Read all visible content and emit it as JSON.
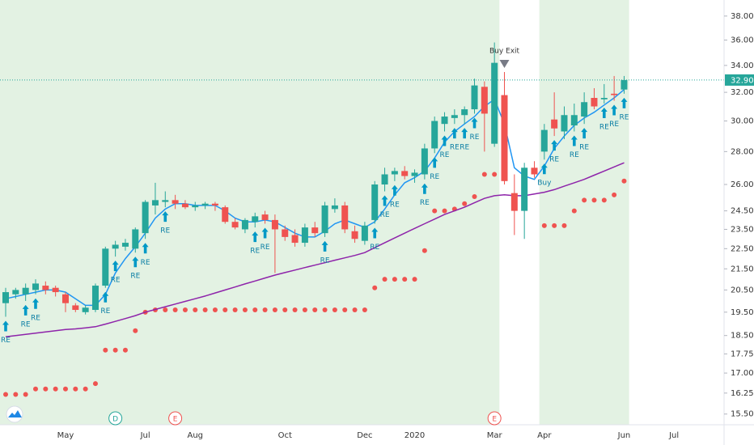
{
  "chart_data": {
    "type": "candlestick",
    "log_scale": true,
    "grid": false,
    "categories": [
      null,
      null,
      null,
      null,
      null,
      null,
      "May",
      null,
      null,
      null,
      null,
      null,
      null,
      null,
      "Jul",
      null,
      null,
      null,
      null,
      "Aug",
      null,
      null,
      null,
      null,
      null,
      null,
      null,
      null,
      "Oct",
      null,
      null,
      null,
      null,
      null,
      null,
      null,
      "Dec",
      null,
      null,
      null,
      null,
      "2020",
      null,
      null,
      null,
      null,
      null,
      null,
      null,
      "Mar",
      null,
      null,
      null,
      null,
      "Apr",
      null,
      null,
      null,
      null,
      null,
      null,
      null,
      "Jun",
      null,
      null,
      null,
      null,
      "Jul",
      null,
      null,
      null,
      null
    ],
    "ohlc": {
      "up_color": "#26a69a",
      "down_color": "#ef5350",
      "open": [
        19.9,
        20.3,
        20.3,
        20.5,
        20.7,
        20.6,
        20.3,
        19.8,
        19.5,
        19.6,
        20.7,
        22.5,
        22.6,
        22.5,
        23.3,
        24.8,
        25.0,
        25.1,
        24.9,
        24.7,
        24.8,
        24.9,
        24.7,
        23.9,
        23.5,
        23.9,
        24.3,
        24.0,
        23.5,
        23.2,
        22.8,
        23.6,
        23.3,
        24.6,
        24.8,
        23.4,
        22.9,
        24.0,
        26.0,
        26.6,
        26.8,
        26.5,
        26.6,
        28.2,
        29.8,
        30.2,
        30.4,
        30.8,
        32.4,
        28.5,
        31.8,
        25.5,
        24.5,
        27.0,
        28.0,
        30.1,
        29.3,
        29.7,
        30.3,
        31.6,
        31.5,
        31.9,
        32.2,
        null,
        null,
        null,
        null,
        null,
        null,
        null,
        null,
        null
      ],
      "high": [
        20.6,
        20.6,
        20.8,
        21.0,
        20.9,
        20.7,
        20.4,
        19.9,
        19.8,
        20.8,
        22.6,
        22.9,
        23.0,
        23.6,
        25.1,
        26.1,
        25.6,
        25.4,
        25.1,
        25.0,
        25.0,
        25.0,
        24.8,
        24.1,
        24.1,
        24.4,
        24.5,
        24.3,
        23.7,
        23.5,
        23.8,
        23.9,
        25.0,
        25.2,
        25.0,
        23.7,
        23.9,
        26.2,
        27.0,
        27.0,
        27.1,
        26.9,
        28.5,
        30.3,
        30.6,
        30.8,
        31.0,
        33.0,
        32.8,
        35.8,
        33.5,
        26.6,
        27.3,
        27.4,
        29.8,
        32.0,
        31.0,
        31.2,
        32.0,
        32.3,
        32.6,
        33.2,
        33.2,
        null,
        null,
        null,
        null,
        null,
        null,
        null,
        null,
        null
      ],
      "low": [
        19.3,
        20.1,
        20.0,
        20.3,
        20.3,
        20.2,
        19.5,
        19.5,
        19.4,
        19.5,
        20.6,
        22.1,
        22.4,
        22.3,
        23.0,
        24.3,
        24.7,
        24.6,
        24.6,
        24.5,
        24.6,
        24.5,
        23.8,
        23.5,
        23.3,
        23.6,
        23.8,
        21.3,
        22.9,
        22.6,
        22.6,
        23.1,
        23.1,
        24.4,
        23.3,
        22.8,
        22.7,
        23.8,
        25.6,
        26.2,
        26.3,
        26.1,
        26.3,
        27.9,
        29.3,
        29.8,
        29.8,
        30.5,
        28.0,
        28.3,
        26.0,
        23.2,
        23.0,
        26.4,
        27.5,
        29.0,
        28.8,
        29.3,
        29.8,
        30.8,
        31.2,
        31.4,
        31.9,
        null,
        null,
        null,
        null,
        null,
        null,
        null,
        null,
        null
      ],
      "close": [
        20.4,
        20.5,
        20.6,
        20.8,
        20.5,
        20.4,
        19.9,
        19.6,
        19.7,
        20.7,
        22.5,
        22.7,
        22.8,
        23.5,
        25.0,
        25.1,
        25.1,
        24.9,
        24.7,
        24.8,
        24.9,
        24.8,
        23.9,
        23.6,
        24.0,
        24.2,
        24.0,
        23.5,
        23.1,
        22.8,
        23.6,
        23.3,
        24.8,
        24.8,
        23.5,
        23.0,
        23.7,
        26.0,
        26.6,
        26.8,
        26.5,
        26.7,
        28.2,
        30.0,
        30.3,
        30.4,
        30.8,
        32.5,
        30.5,
        34.2,
        26.2,
        24.5,
        27.0,
        26.6,
        29.4,
        29.5,
        30.4,
        30.4,
        31.3,
        31.0,
        31.6,
        31.8,
        32.9,
        null,
        null,
        null,
        null,
        null,
        null,
        null,
        null,
        null
      ]
    },
    "lines": [
      {
        "color": "#2196f3",
        "values": [
          20.1,
          20.2,
          20.3,
          20.4,
          20.5,
          20.5,
          20.4,
          20.1,
          19.8,
          19.8,
          20.3,
          21.3,
          22.0,
          22.6,
          23.3,
          24.1,
          24.6,
          24.9,
          24.9,
          24.8,
          24.8,
          24.8,
          24.5,
          24.1,
          23.9,
          23.9,
          24.0,
          23.9,
          23.6,
          23.3,
          23.1,
          23.1,
          23.4,
          23.8,
          24.0,
          23.8,
          23.6,
          23.9,
          24.6,
          25.4,
          26.1,
          26.4,
          26.8,
          27.6,
          28.6,
          29.3,
          29.8,
          30.3,
          31.0,
          31.5,
          29.8,
          27.0,
          26.5,
          26.3,
          27.1,
          28.2,
          29.0,
          29.7,
          30.2,
          30.6,
          31.1,
          31.6,
          32.2,
          null,
          null,
          null,
          null,
          null,
          null,
          null,
          null,
          null
        ]
      },
      {
        "color": "#8e24aa",
        "values": [
          18.45,
          18.5,
          18.55,
          18.6,
          18.65,
          18.7,
          18.75,
          18.78,
          18.82,
          18.87,
          18.98,
          19.1,
          19.22,
          19.35,
          19.5,
          19.62,
          19.74,
          19.86,
          19.98,
          20.1,
          20.22,
          20.36,
          20.5,
          20.64,
          20.78,
          20.92,
          21.06,
          21.2,
          21.32,
          21.44,
          21.56,
          21.68,
          21.8,
          21.92,
          22.04,
          22.16,
          22.3,
          22.55,
          22.8,
          23.05,
          23.3,
          23.55,
          23.8,
          24.05,
          24.3,
          24.5,
          24.7,
          24.95,
          25.2,
          25.35,
          25.4,
          25.35,
          25.35,
          25.45,
          25.55,
          25.7,
          25.9,
          26.1,
          26.3,
          26.55,
          26.8,
          27.05,
          27.3,
          null,
          null,
          null,
          null,
          null,
          null,
          null,
          null,
          null
        ]
      }
    ],
    "sar": {
      "color": "#ef5350",
      "values": [
        16.2,
        16.2,
        16.2,
        16.4,
        16.4,
        16.4,
        16.4,
        16.4,
        16.4,
        16.6,
        17.9,
        17.9,
        17.9,
        18.7,
        19.5,
        19.6,
        19.6,
        19.6,
        19.6,
        19.6,
        19.6,
        19.6,
        19.6,
        19.6,
        19.6,
        19.6,
        19.6,
        19.6,
        19.6,
        19.6,
        19.6,
        19.6,
        19.6,
        19.6,
        19.6,
        19.6,
        19.6,
        20.6,
        21.0,
        21.0,
        21.0,
        21.0,
        22.4,
        24.5,
        24.5,
        24.6,
        24.9,
        25.3,
        26.6,
        26.6,
        null,
        null,
        null,
        null,
        23.7,
        23.7,
        23.7,
        24.5,
        25.1,
        25.1,
        25.1,
        25.4,
        26.2,
        null,
        null,
        null,
        null,
        null,
        null,
        null,
        null,
        null
      ]
    },
    "entry_signals": [
      "RE",
      null,
      "RE",
      "RE",
      null,
      null,
      null,
      null,
      null,
      null,
      "RE",
      "RE",
      null,
      "RE",
      "RE",
      null,
      "RE",
      null,
      null,
      null,
      null,
      null,
      null,
      null,
      null,
      "RE",
      "RE",
      null,
      null,
      null,
      null,
      null,
      "RE",
      null,
      null,
      null,
      null,
      "RE",
      "RE",
      "RE",
      null,
      null,
      "RE",
      "RE",
      "RE",
      "RE",
      "RE",
      "RE",
      null,
      null,
      null,
      null,
      null,
      null,
      "Buy",
      "RE",
      null,
      "RE",
      "RE",
      null,
      "RE",
      "RE",
      "RE",
      null,
      null,
      null,
      null,
      null,
      null,
      null,
      null,
      null
    ],
    "exit_signals": [
      null,
      null,
      null,
      null,
      null,
      null,
      null,
      null,
      null,
      null,
      null,
      null,
      null,
      null,
      null,
      null,
      null,
      null,
      null,
      null,
      null,
      null,
      null,
      null,
      null,
      null,
      null,
      null,
      null,
      null,
      null,
      null,
      null,
      null,
      null,
      null,
      null,
      null,
      null,
      null,
      null,
      null,
      null,
      null,
      null,
      null,
      null,
      null,
      null,
      null,
      "Buy Exit",
      null,
      null,
      null,
      null,
      null,
      null,
      null,
      null,
      null,
      null,
      null,
      null,
      null,
      null,
      null,
      null,
      null,
      null,
      null,
      null,
      null
    ],
    "events": [
      null,
      null,
      null,
      null,
      null,
      null,
      null,
      null,
      null,
      null,
      null,
      "D",
      null,
      null,
      null,
      null,
      null,
      "E",
      null,
      null,
      null,
      null,
      null,
      null,
      null,
      null,
      null,
      null,
      null,
      null,
      null,
      null,
      null,
      null,
      null,
      null,
      null,
      null,
      null,
      null,
      null,
      null,
      null,
      null,
      null,
      null,
      null,
      null,
      null,
      "E",
      null,
      null,
      null,
      null,
      null,
      null,
      null,
      null,
      null,
      null,
      null,
      null,
      null,
      null,
      null,
      null,
      null,
      null,
      null,
      null,
      null,
      null
    ],
    "last_price_label": "32.90",
    "ylim": [
      15.13,
      39.4
    ],
    "yticks": [
      {
        "value": 38,
        "label": "38.00"
      },
      {
        "value": 36,
        "label": "36.00"
      },
      {
        "value": 34,
        "label": "34.00"
      },
      {
        "value": 32,
        "label": "32.00"
      },
      {
        "value": 30,
        "label": "30.00"
      },
      {
        "value": 28,
        "label": "28.00"
      },
      {
        "value": 26,
        "label": "26.00"
      },
      {
        "value": 24.5,
        "label": "24.50"
      },
      {
        "value": 23.5,
        "label": "23.50"
      },
      {
        "value": 22.5,
        "label": "22.50"
      },
      {
        "value": 21.5,
        "label": "21.50"
      },
      {
        "value": 20.5,
        "label": "20.50"
      },
      {
        "value": 19.5,
        "label": "19.50"
      },
      {
        "value": 18.5,
        "label": "18.50"
      },
      {
        "value": 17.75,
        "label": "17.75"
      },
      {
        "value": 17,
        "label": "17.00"
      },
      {
        "value": 16.25,
        "label": "16.25"
      },
      {
        "value": 15.5,
        "label": "15.50"
      }
    ]
  }
}
